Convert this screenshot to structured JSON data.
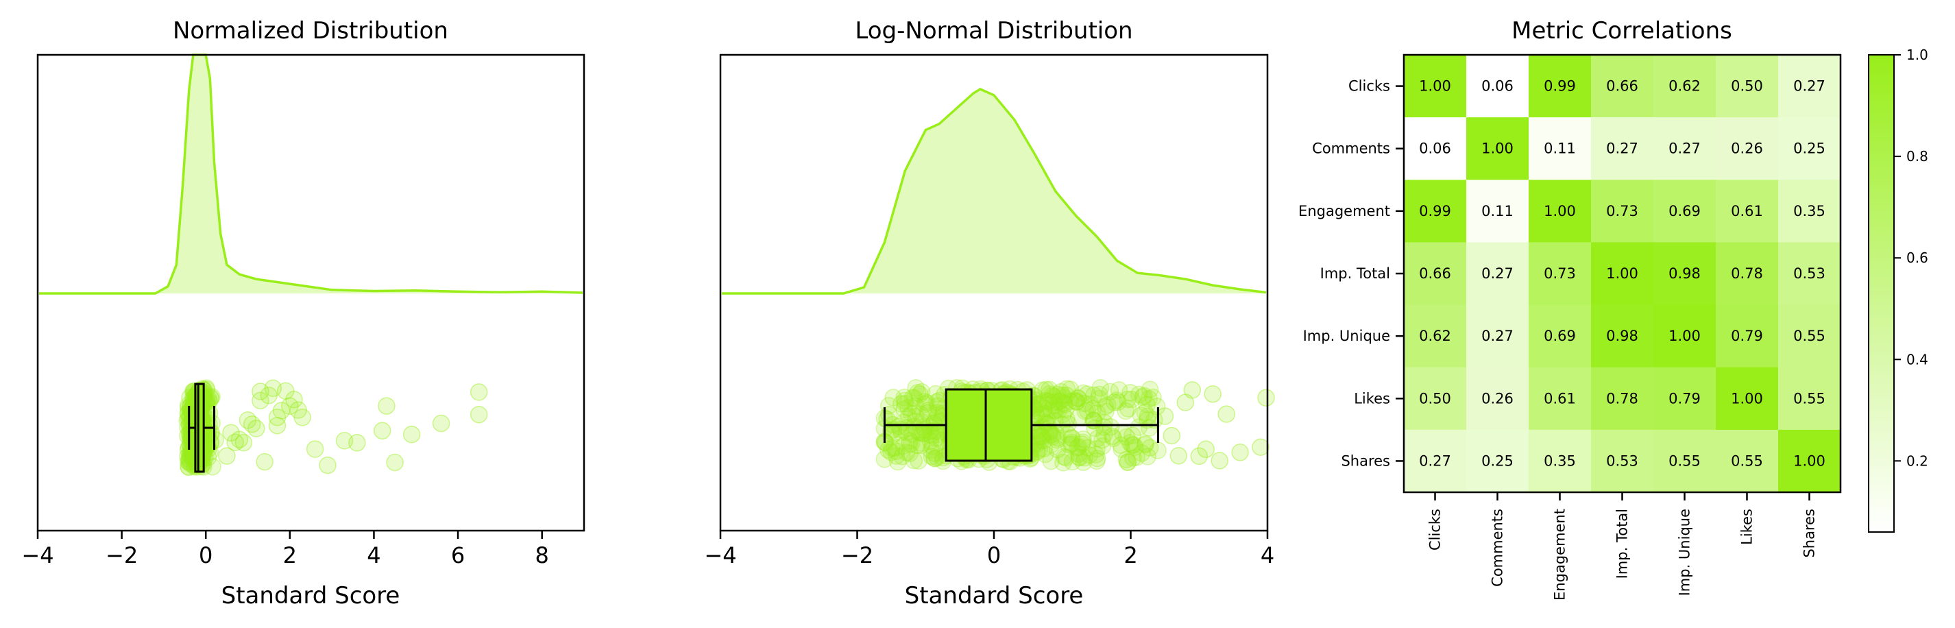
{
  "chart_data": [
    {
      "type": "ridge_jitter_box",
      "title": "Normalized Distribution",
      "xlabel": "Standard Score",
      "xlim": [
        -4,
        9
      ],
      "xticks": [
        -4,
        -2,
        0,
        2,
        4,
        6,
        8
      ],
      "tick_labels": [
        "−4",
        "−2",
        "0",
        "2",
        "4",
        "6",
        "8"
      ],
      "density": {
        "x": [
          -4,
          -1.2,
          -0.9,
          -0.7,
          -0.55,
          -0.4,
          -0.3,
          -0.2,
          -0.1,
          0,
          0.1,
          0.2,
          0.35,
          0.5,
          0.8,
          1.2,
          2,
          3,
          4,
          5,
          6,
          7,
          8,
          9
        ],
        "y": [
          0,
          0.0,
          0.03,
          0.12,
          0.45,
          0.85,
          1.0,
          1.0,
          1.0,
          1.0,
          0.9,
          0.55,
          0.25,
          0.12,
          0.08,
          0.06,
          0.04,
          0.015,
          0.01,
          0.012,
          0.008,
          0.005,
          0.008,
          0.003
        ]
      },
      "box": {
        "whisker_low": -0.4,
        "q1": -0.25,
        "median": -0.18,
        "q3": -0.05,
        "whisker_high": 0.2
      },
      "outliers": [
        0.5,
        0.6,
        0.7,
        0.8,
        0.9,
        1.0,
        1.1,
        1.2,
        1.3,
        1.4,
        1.5,
        1.6,
        1.7,
        1.8,
        1.9,
        2.0,
        2.1,
        2.2,
        2.3,
        1.3,
        1.7,
        2.6,
        2.9,
        3.3,
        3.6,
        4.2,
        4.3,
        4.5,
        4.9,
        5.6,
        6.5,
        6.5
      ],
      "color": "#99ee1a"
    },
    {
      "type": "ridge_jitter_box",
      "title": "Log-Normal Distribution",
      "xlabel": "Standard Score",
      "xlim": [
        -4,
        4
      ],
      "xticks": [
        -4,
        -2,
        0,
        2,
        4
      ],
      "tick_labels": [
        "−4",
        "−2",
        "0",
        "2",
        "4"
      ],
      "density": {
        "x": [
          -4,
          -2.2,
          -1.9,
          -1.6,
          -1.3,
          -1.0,
          -0.8,
          -0.5,
          -0.3,
          -0.2,
          0,
          0.3,
          0.6,
          0.9,
          1.2,
          1.5,
          1.8,
          2.1,
          2.4,
          2.8,
          3.2,
          3.6,
          4
        ],
        "y": [
          0,
          0.0,
          0.03,
          0.25,
          0.6,
          0.8,
          0.83,
          0.92,
          0.98,
          1.0,
          0.97,
          0.85,
          0.68,
          0.5,
          0.38,
          0.28,
          0.16,
          0.1,
          0.09,
          0.07,
          0.04,
          0.02,
          0.005
        ]
      },
      "box": {
        "whisker_low": -1.6,
        "q1": -0.7,
        "median": -0.12,
        "q3": 0.55,
        "whisker_high": 2.4
      },
      "outliers": [
        2.5,
        2.6,
        2.7,
        2.8,
        2.9,
        3.0,
        3.1,
        3.2,
        3.3,
        3.4,
        3.6,
        3.9,
        4.0
      ],
      "color": "#99ee1a"
    },
    {
      "type": "heatmap",
      "title": "Metric Correlations",
      "labels": [
        "Clicks",
        "Comments",
        "Engagement",
        "Imp. Total",
        "Imp. Unique",
        "Likes",
        "Shares"
      ],
      "values": [
        [
          1.0,
          0.06,
          0.99,
          0.66,
          0.62,
          0.5,
          0.27
        ],
        [
          0.06,
          1.0,
          0.11,
          0.27,
          0.27,
          0.26,
          0.25
        ],
        [
          0.99,
          0.11,
          1.0,
          0.73,
          0.69,
          0.61,
          0.35
        ],
        [
          0.66,
          0.27,
          0.73,
          1.0,
          0.98,
          0.78,
          0.53
        ],
        [
          0.62,
          0.27,
          0.69,
          0.98,
          1.0,
          0.79,
          0.55
        ],
        [
          0.5,
          0.26,
          0.61,
          0.78,
          0.79,
          1.0,
          0.55
        ],
        [
          0.27,
          0.25,
          0.35,
          0.53,
          0.55,
          0.55,
          1.0
        ]
      ],
      "value_labels": [
        [
          "1.00",
          "0.06",
          "0.99",
          "0.66",
          "0.62",
          "0.50",
          "0.27"
        ],
        [
          "0.06",
          "1.00",
          "0.11",
          "0.27",
          "0.27",
          "0.26",
          "0.25"
        ],
        [
          "0.99",
          "0.11",
          "1.00",
          "0.73",
          "0.69",
          "0.61",
          "0.35"
        ],
        [
          "0.66",
          "0.27",
          "0.73",
          "1.00",
          "0.98",
          "0.78",
          "0.53"
        ],
        [
          "0.62",
          "0.27",
          "0.69",
          "0.98",
          "1.00",
          "0.79",
          "0.55"
        ],
        [
          "0.50",
          "0.26",
          "0.61",
          "0.78",
          "0.79",
          "1.00",
          "0.55"
        ],
        [
          "0.27",
          "0.25",
          "0.35",
          "0.53",
          "0.55",
          "0.55",
          "1.00"
        ]
      ],
      "colorbar": {
        "range": [
          0.06,
          1.0
        ],
        "ticks": [
          0.2,
          0.4,
          0.6,
          0.8,
          1.0
        ],
        "tick_labels": [
          "0.2",
          "0.4",
          "0.6",
          "0.8",
          "1.0"
        ]
      },
      "color_low": "#ffffff",
      "color_high": "#99ee1a"
    }
  ]
}
